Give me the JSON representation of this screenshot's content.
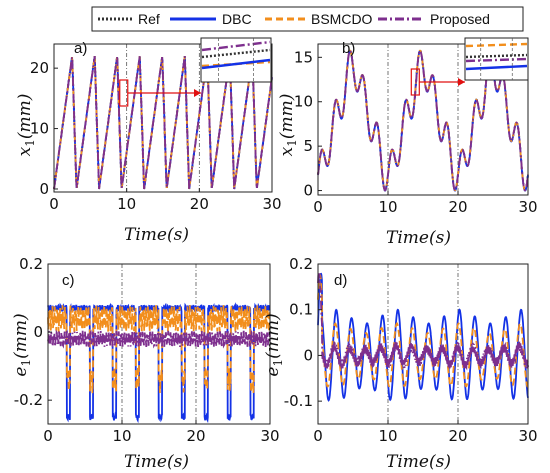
{
  "legend": {
    "entries": [
      {
        "label": "Ref",
        "color": "#333333",
        "dash": "2,2"
      },
      {
        "label": "DBC",
        "color": "#1432e6",
        "dash": ""
      },
      {
        "label": "BSMCDO",
        "color": "#f28e1c",
        "dash": "7,4"
      },
      {
        "label": "Proposed",
        "color": "#7e2f8e",
        "dash": "9,3,2,3"
      }
    ]
  },
  "chart_data": [
    {
      "type": "line",
      "panel_label": "a)",
      "xlabel": "Time(s)",
      "ylabel": "x1(mm)",
      "xlim": [
        0,
        30
      ],
      "ylim": [
        -0.5,
        24
      ],
      "xticks": [
        "0",
        "10",
        "20",
        "30"
      ],
      "yticks": [
        "0",
        "10",
        "20"
      ],
      "vlines": [
        10,
        20
      ],
      "series": [
        {
          "name": "Ref",
          "kind": "triangle_wave",
          "period_s": 3.1,
          "rise_s": 2.5,
          "min": 0,
          "max": 22
        },
        {
          "name": "DBC",
          "kind": "triangle_wave",
          "period_s": 3.1,
          "rise_s": 2.5,
          "min": 0,
          "max": 22
        },
        {
          "name": "BSMCDO",
          "kind": "triangle_wave",
          "period_s": 3.1,
          "rise_s": 2.5,
          "min": 0,
          "max": 22
        },
        {
          "name": "Proposed",
          "kind": "triangle_wave",
          "period_s": 3.1,
          "rise_s": 2.5,
          "min": 0,
          "max": 22
        }
      ],
      "zoom_inset": true
    },
    {
      "type": "line",
      "panel_label": "b)",
      "xlabel": "Time(s)",
      "ylabel": "x1(mm)",
      "xlim": [
        0,
        30
      ],
      "ylim": [
        -0.5,
        16.5
      ],
      "xticks": [
        "0",
        "10",
        "20",
        "30"
      ],
      "yticks": [
        "0",
        "5",
        "10",
        "15"
      ],
      "vlines": [
        10,
        20
      ],
      "series": [
        {
          "name": "Ref",
          "kind": "multi_sine",
          "period_s": 10
        },
        {
          "name": "DBC",
          "kind": "multi_sine",
          "period_s": 10
        },
        {
          "name": "BSMCDO",
          "kind": "multi_sine",
          "period_s": 10
        },
        {
          "name": "Proposed",
          "kind": "multi_sine",
          "period_s": 10
        }
      ],
      "zoom_inset": true
    },
    {
      "type": "line",
      "panel_label": "c)",
      "xlabel": "Time(s)",
      "ylabel": "e1(mm)",
      "xlim": [
        0,
        30
      ],
      "ylim": [
        -0.27,
        0.2
      ],
      "xticks": [
        "0",
        "10",
        "20",
        "30"
      ],
      "yticks": [
        "-0.2",
        "0",
        "0.2"
      ],
      "vlines": [
        10,
        20
      ],
      "series": [
        {
          "name": "DBC",
          "kind": "error_square",
          "high": 0.07,
          "low": -0.25
        },
        {
          "name": "BSMCDO",
          "kind": "error_square",
          "high": 0.04,
          "low": -0.14
        },
        {
          "name": "Proposed",
          "kind": "error_square",
          "high": -0.02,
          "low": -0.02
        }
      ]
    },
    {
      "type": "line",
      "panel_label": "d)",
      "xlabel": "Time(s)",
      "ylabel": "e1(mm)",
      "xlim": [
        0,
        30
      ],
      "ylim": [
        -0.15,
        0.2
      ],
      "xticks": [
        "0",
        "10",
        "20",
        "30"
      ],
      "yticks": [
        "-0.1",
        "0",
        "0.1",
        "0.2"
      ],
      "vlines": [
        10,
        20
      ],
      "series": [
        {
          "name": "DBC",
          "kind": "error_osc",
          "amplitude": 0.1
        },
        {
          "name": "BSMCDO",
          "kind": "error_osc",
          "amplitude": 0.07
        },
        {
          "name": "Proposed",
          "kind": "error_osc",
          "amplitude": 0.02
        }
      ]
    }
  ]
}
